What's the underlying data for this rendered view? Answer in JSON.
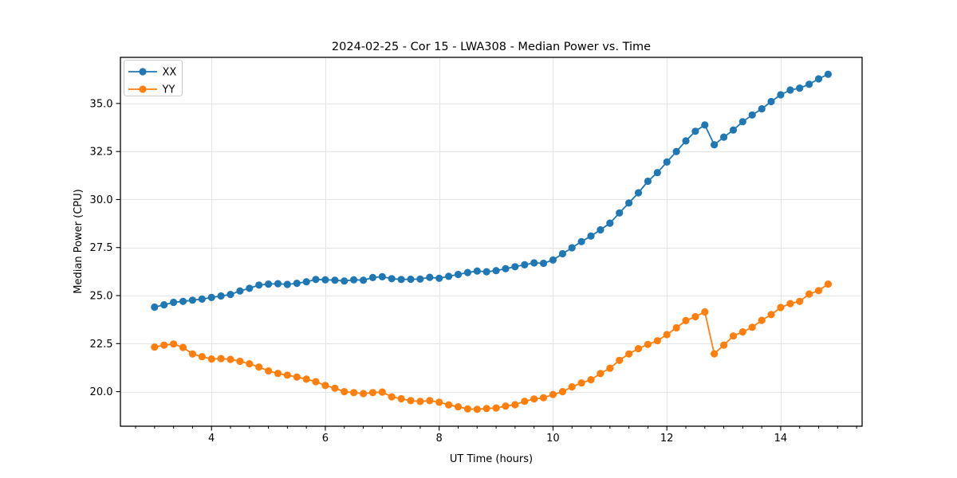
{
  "title": "2024-02-25 - Cor 15 - LWA308 - Median Power vs. Time",
  "colors": {
    "background": "#ffffff",
    "grid": "#e4e4e4",
    "spine": "#000000",
    "series_xx": "#1f77b4",
    "series_yy": "#ff7f0e",
    "legend_border": "#cccccc"
  },
  "chart_data": {
    "type": "line",
    "title": "2024-02-25 - Cor 15 - LWA308 - Median Power vs. Time",
    "xlabel": "UT Time (hours)",
    "ylabel": "Median Power (CPU)",
    "xlim": [
      2.4,
      15.43
    ],
    "ylim": [
      18.2,
      37.4
    ],
    "x_major_ticks": [
      4,
      6,
      8,
      10,
      12,
      14
    ],
    "x_minor_interval": 0.33333,
    "y_ticks": [
      20.0,
      22.5,
      25.0,
      27.5,
      30.0,
      32.5,
      35.0
    ],
    "grid": true,
    "legend_position": "upper-left",
    "marker": "circle",
    "x": [
      3.0,
      3.167,
      3.333,
      3.5,
      3.667,
      3.833,
      4.0,
      4.167,
      4.333,
      4.5,
      4.667,
      4.833,
      5.0,
      5.167,
      5.333,
      5.5,
      5.667,
      5.833,
      6.0,
      6.167,
      6.333,
      6.5,
      6.667,
      6.833,
      7.0,
      7.167,
      7.333,
      7.5,
      7.667,
      7.833,
      8.0,
      8.167,
      8.333,
      8.5,
      8.667,
      8.833,
      9.0,
      9.167,
      9.333,
      9.5,
      9.667,
      9.833,
      10.0,
      10.167,
      10.333,
      10.5,
      10.667,
      10.833,
      11.0,
      11.167,
      11.333,
      11.5,
      11.667,
      11.833,
      12.0,
      12.167,
      12.333,
      12.5,
      12.667,
      12.833,
      13.0,
      13.167,
      13.333,
      13.5,
      13.667,
      13.833,
      14.0,
      14.167,
      14.333,
      14.5,
      14.667,
      14.833
    ],
    "series": [
      {
        "name": "XX",
        "color": "#1f77b4",
        "values": [
          24.4,
          24.52,
          24.65,
          24.7,
          24.76,
          24.82,
          24.9,
          24.98,
          25.06,
          25.24,
          25.38,
          25.55,
          25.6,
          25.62,
          25.58,
          25.64,
          25.72,
          25.84,
          25.82,
          25.8,
          25.76,
          25.82,
          25.8,
          25.94,
          25.98,
          25.88,
          25.84,
          25.85,
          25.86,
          25.95,
          25.9,
          26.0,
          26.1,
          26.2,
          26.28,
          26.24,
          26.3,
          26.4,
          26.5,
          26.6,
          26.7,
          26.68,
          26.85,
          27.18,
          27.49,
          27.81,
          28.1,
          28.42,
          28.77,
          29.3,
          29.82,
          30.35,
          30.95,
          31.4,
          31.95,
          32.5,
          33.05,
          33.55,
          33.88,
          32.85,
          33.25,
          33.62,
          34.05,
          34.4,
          34.72,
          35.1,
          35.45,
          35.7,
          35.8,
          36.0,
          36.28,
          36.52
        ]
      },
      {
        "name": "YY",
        "color": "#ff7f0e",
        "values": [
          22.32,
          22.42,
          22.48,
          22.3,
          21.96,
          21.82,
          21.7,
          21.72,
          21.68,
          21.58,
          21.45,
          21.28,
          21.08,
          20.95,
          20.86,
          20.76,
          20.65,
          20.52,
          20.32,
          20.18,
          20.0,
          19.95,
          19.9,
          19.95,
          19.98,
          19.73,
          19.63,
          19.53,
          19.49,
          19.53,
          19.45,
          19.31,
          19.21,
          19.1,
          19.08,
          19.12,
          19.15,
          19.25,
          19.32,
          19.5,
          19.62,
          19.68,
          19.85,
          20.0,
          20.25,
          20.45,
          20.62,
          20.94,
          21.22,
          21.63,
          21.96,
          22.24,
          22.46,
          22.65,
          22.97,
          23.32,
          23.7,
          23.9,
          24.15,
          21.97,
          22.42,
          22.9,
          23.11,
          23.35,
          23.71,
          24.01,
          24.38,
          24.58,
          24.7,
          25.08,
          25.26,
          25.6
        ]
      }
    ]
  }
}
